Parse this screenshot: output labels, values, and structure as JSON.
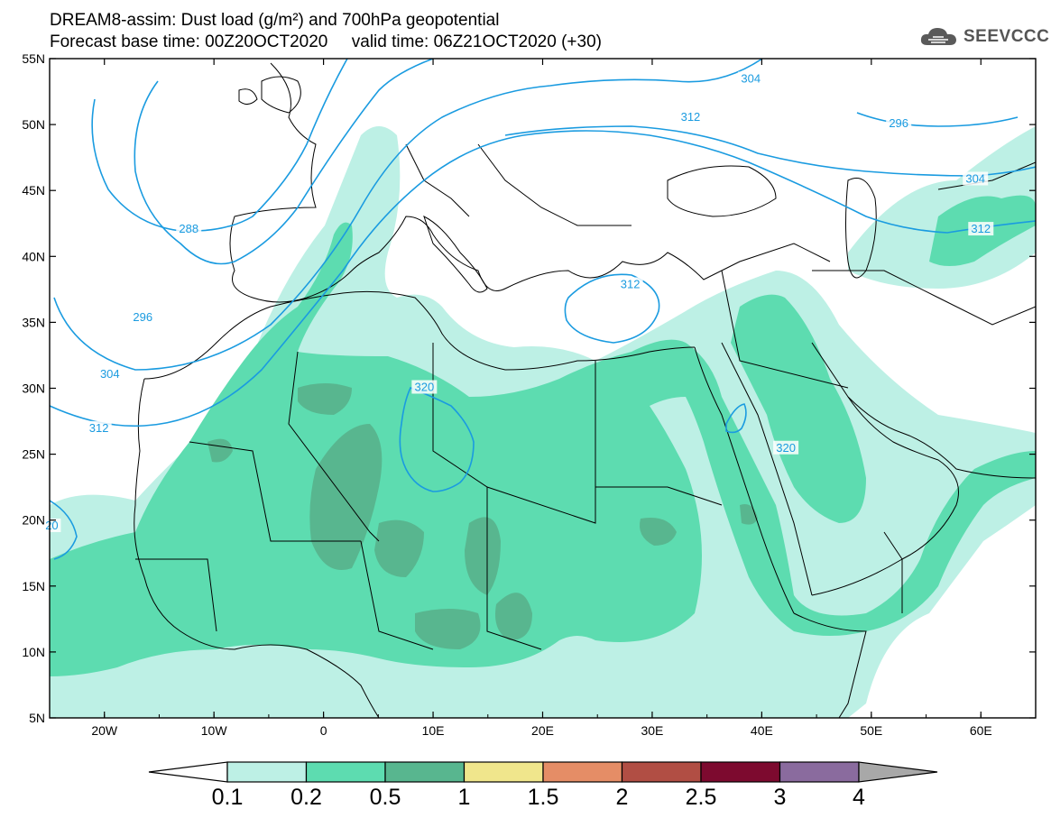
{
  "header": {
    "title_line1": "DREAM8-assim: Dust load (g/m²) and 700hPa geopotential",
    "title_line2": "Forecast base time: 00Z20OCT2020     valid time: 06Z21OCT2020 (+30)"
  },
  "logo": {
    "text": "SEEVCCC",
    "icon": "cloud-icon"
  },
  "map": {
    "lon_range": [
      -25,
      65
    ],
    "lat_range": [
      5,
      55
    ],
    "lat_ticks": [
      "55N",
      "50N",
      "45N",
      "40N",
      "35N",
      "30N",
      "25N",
      "20N",
      "15N",
      "10N",
      "5N"
    ],
    "lon_ticks": [
      "20W",
      "10W",
      "0",
      "10E",
      "20E",
      "30E",
      "40E",
      "50E",
      "60E"
    ],
    "contour_color": "#1a9be0",
    "contour_labels": [
      {
        "text": "304",
        "lon": 39,
        "lat": 53.4
      },
      {
        "text": "296",
        "lon": 52.5,
        "lat": 50
      },
      {
        "text": "312",
        "lon": 33.5,
        "lat": 50.5
      },
      {
        "text": "304",
        "lon": 59.5,
        "lat": 45.8
      },
      {
        "text": "312",
        "lon": 60,
        "lat": 42
      },
      {
        "text": "288",
        "lon": -12.3,
        "lat": 42
      },
      {
        "text": "312",
        "lon": 28,
        "lat": 37.8
      },
      {
        "text": "296",
        "lon": -16.5,
        "lat": 35.3
      },
      {
        "text": "304",
        "lon": -19.5,
        "lat": 31
      },
      {
        "text": "320",
        "lon": 9.2,
        "lat": 30
      },
      {
        "text": "312",
        "lon": -20.5,
        "lat": 26.9
      },
      {
        "text": "320",
        "lon": 42.2,
        "lat": 25.4
      },
      {
        "text": "20",
        "lon": -24.8,
        "lat": 19.5
      }
    ]
  },
  "colorbar": {
    "labels": [
      "0.1",
      "0.2",
      "0.5",
      "1",
      "1.5",
      "2",
      "2.5",
      "3",
      "4"
    ],
    "colors": [
      "#bdf0e5",
      "#5ddcb0",
      "#58b68f",
      "#f0e68c",
      "#e58d66",
      "#b14e44",
      "#7d0a2f",
      "#8a6b9e",
      "#a8a8a8"
    ]
  }
}
